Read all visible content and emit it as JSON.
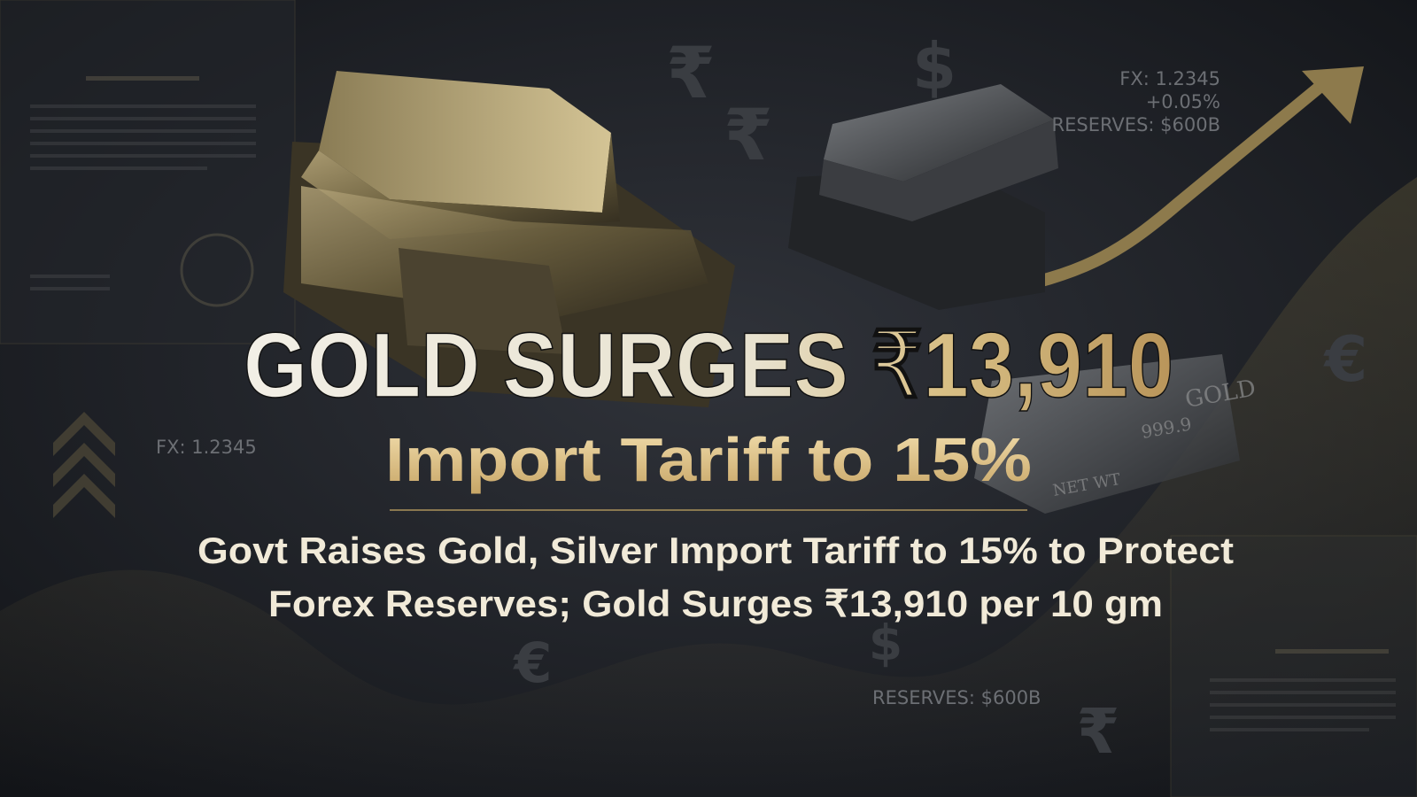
{
  "headline": {
    "title": "GOLD SURGES ₹13,910",
    "subtitle": "Import Tariff to 15%",
    "description": [
      "Govt Raises Gold, Silver Import Tariff to 15% to Protect",
      "Forex Reserves; Gold Surges ₹13,910 per 10 gm"
    ]
  },
  "ticker_top": [
    "FX: 1.2345",
    "+0.05%",
    "RESERVES: $600B"
  ],
  "ticker_left": "FX: 1.2345",
  "ticker_bottom": "RESERVES: $600B",
  "symbols": [
    "₹",
    "₹",
    "$",
    "€",
    "€",
    "$",
    "₹"
  ],
  "bar_labels": [
    "GOLD",
    "999.9",
    "NET WT"
  ]
}
